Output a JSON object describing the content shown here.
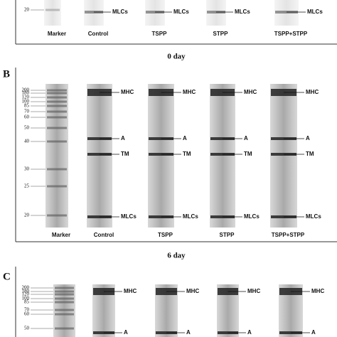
{
  "panels": [
    {
      "markers": [
        "20"
      ],
      "lanes": [
        {
          "name": "Marker"
        },
        {
          "name": "Control",
          "bands": [
            "MLCs"
          ]
        },
        {
          "name": "TSPP",
          "bands": [
            "MLCs"
          ]
        },
        {
          "name": "STPP",
          "bands": [
            "MLCs"
          ]
        },
        {
          "name": "TSPP+STPP",
          "bands": [
            "MLCs"
          ]
        }
      ],
      "caption": "0 day"
    },
    {
      "label": "B",
      "markers": [
        "200",
        "180",
        "120",
        "100",
        "85",
        "70",
        "60",
        "50",
        "40",
        "30",
        "25",
        "20"
      ],
      "lanes": [
        {
          "name": "Marker"
        },
        {
          "name": "Control",
          "bands": [
            "MHC",
            "A",
            "TM",
            "MLCs"
          ]
        },
        {
          "name": "TSPP",
          "bands": [
            "MHC",
            "A",
            "TM",
            "MLCs"
          ]
        },
        {
          "name": "STPP",
          "bands": [
            "MHC",
            "A",
            "TM",
            "MLCs"
          ]
        },
        {
          "name": "TSPP+STPP",
          "bands": [
            "MHC",
            "A",
            "TM",
            "MLCs"
          ]
        }
      ],
      "caption": "6 day"
    },
    {
      "label": "C",
      "markers": [
        "200",
        "180",
        "120",
        "100",
        "85",
        "70",
        "60",
        "50"
      ],
      "lanes": [
        {},
        {
          "bands": [
            "MHC",
            "A"
          ]
        },
        {
          "bands": [
            "MHC",
            "A"
          ]
        },
        {
          "bands": [
            "MHC",
            "A"
          ]
        },
        {
          "bands": [
            "MHC",
            "A"
          ]
        }
      ]
    }
  ]
}
